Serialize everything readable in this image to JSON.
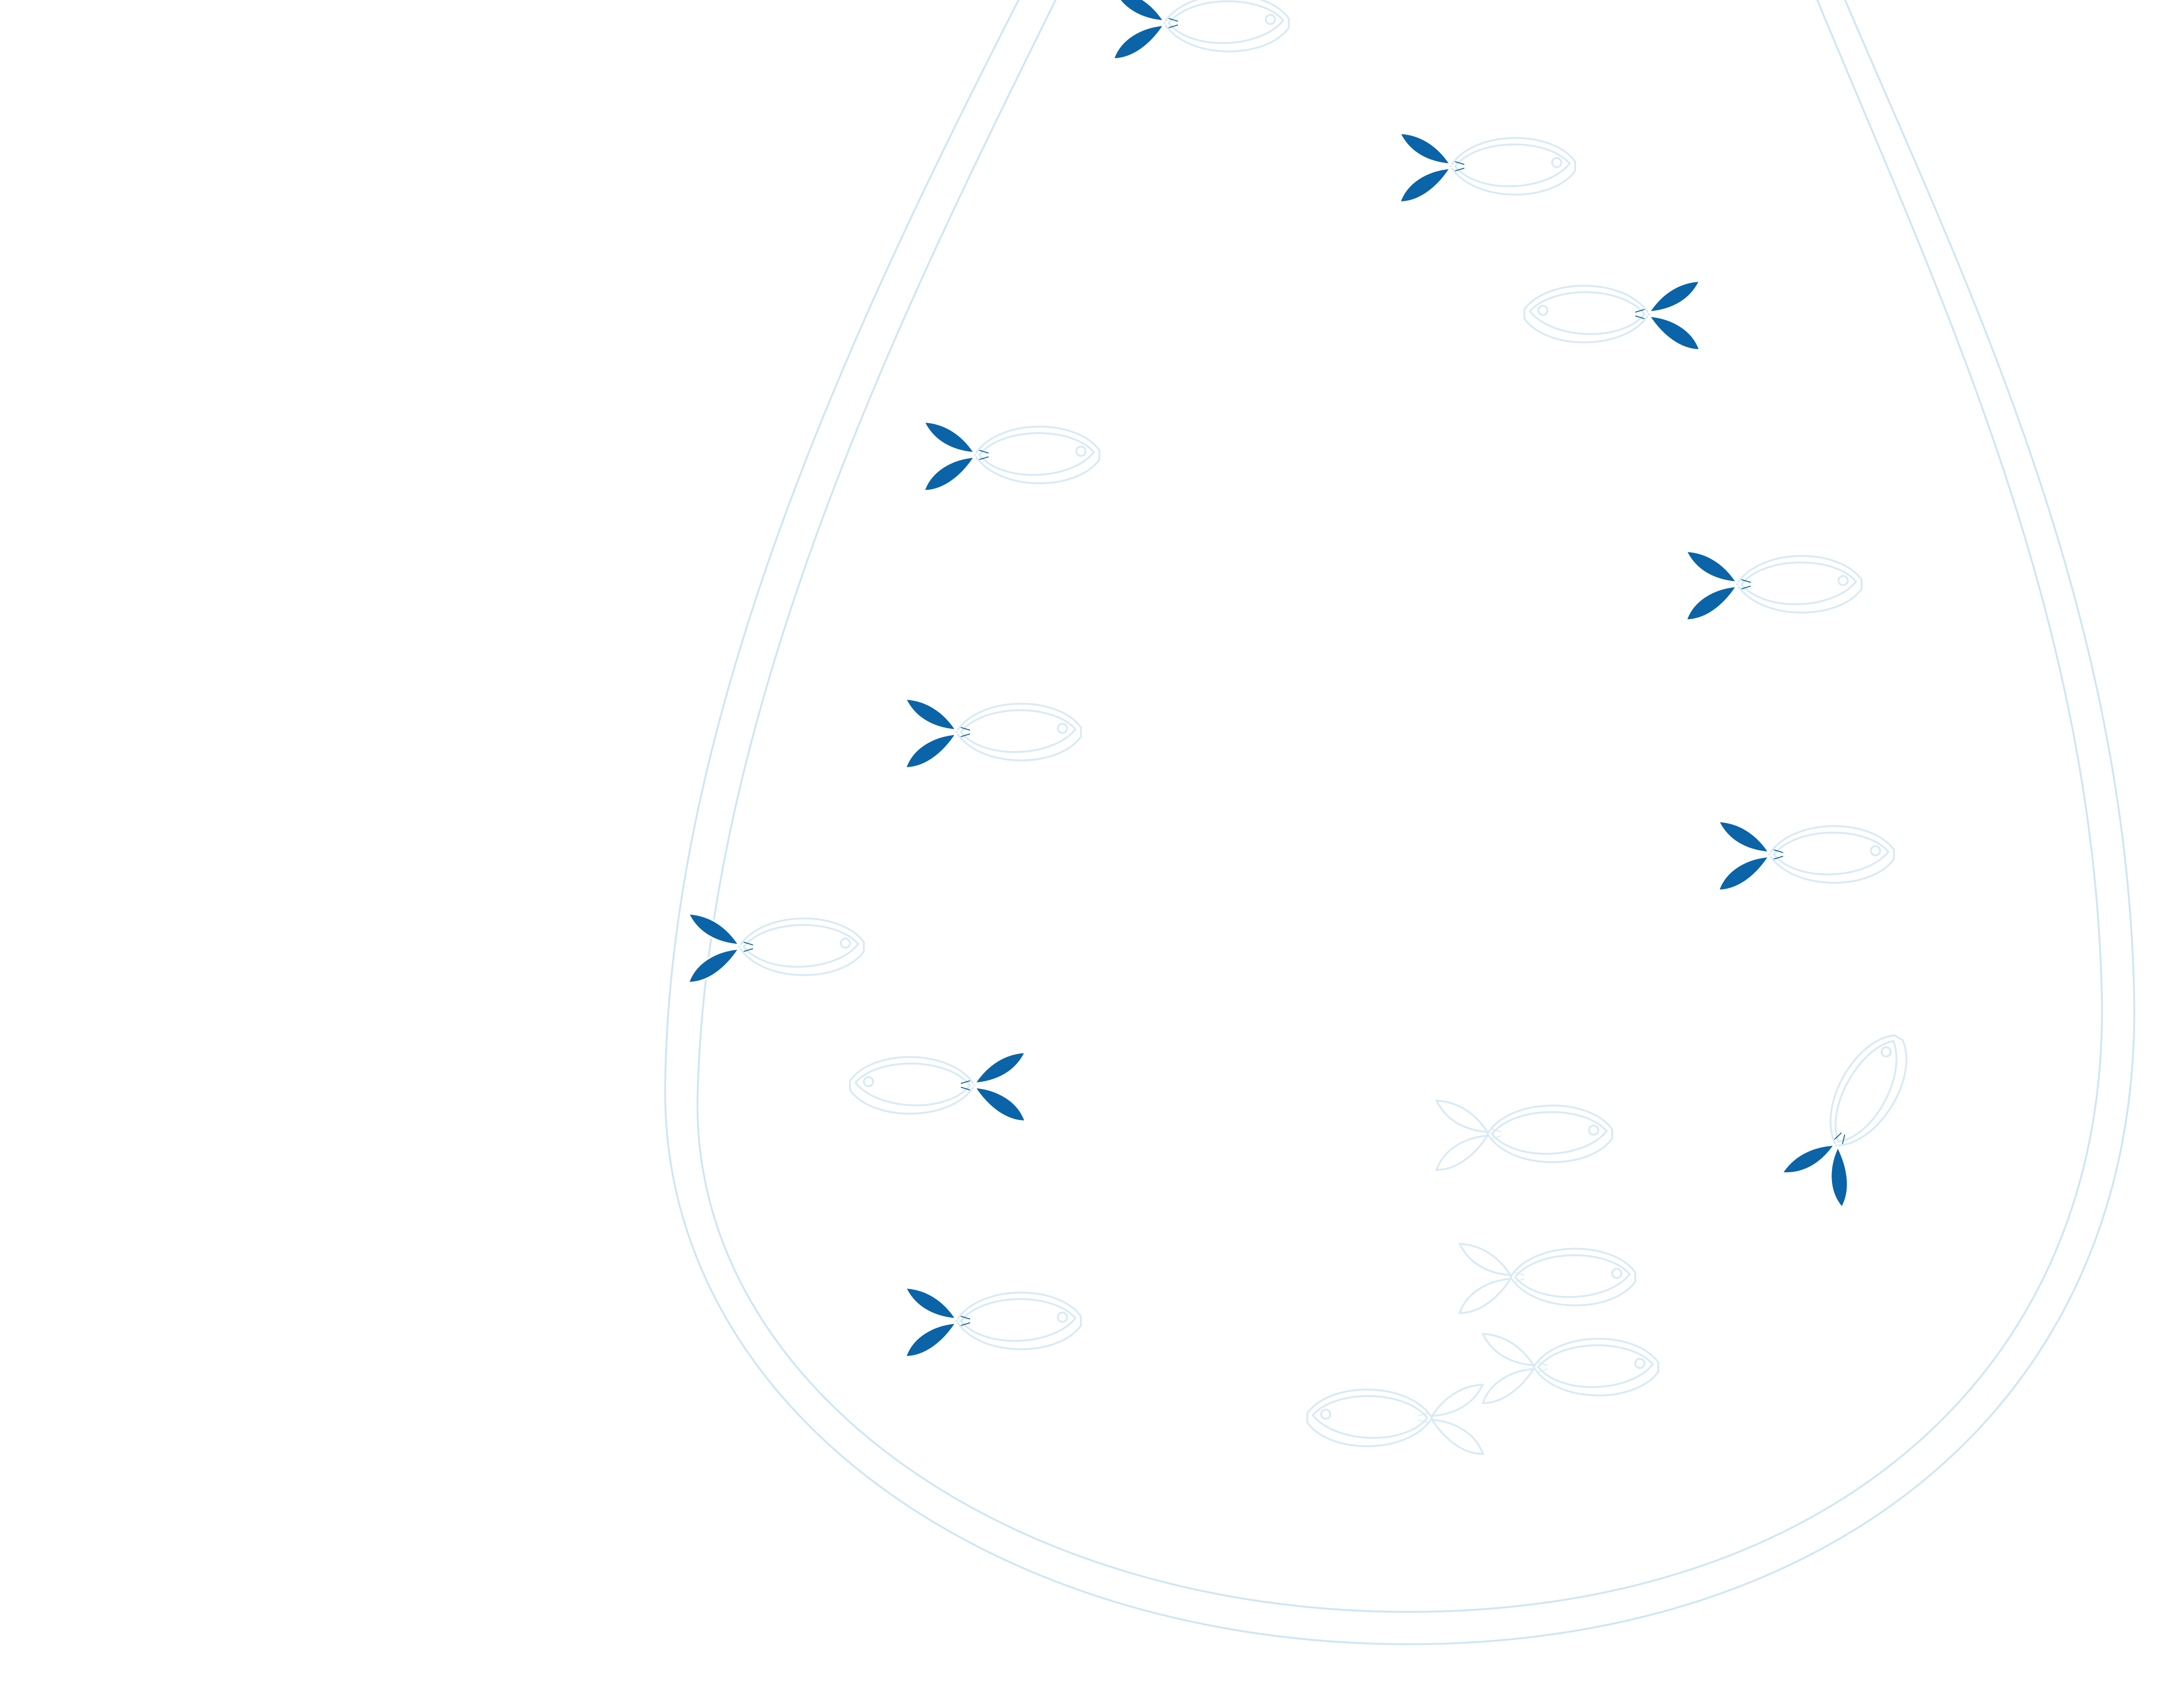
{
  "colors": {
    "tail_fill": "#0b64a8",
    "outline": "#cfe6f3",
    "background": "#ffffff"
  },
  "vessel": {
    "name": "bottle-outline",
    "shape": "inverted teardrop with double outline"
  },
  "fish": [
    {
      "id": "fish-1",
      "tail": "filled",
      "facing": "right"
    },
    {
      "id": "fish-2",
      "tail": "filled",
      "facing": "right"
    },
    {
      "id": "fish-3",
      "tail": "filled",
      "facing": "left"
    },
    {
      "id": "fish-4",
      "tail": "filled",
      "facing": "right"
    },
    {
      "id": "fish-5",
      "tail": "filled",
      "facing": "right"
    },
    {
      "id": "fish-6",
      "tail": "filled",
      "facing": "right"
    },
    {
      "id": "fish-7",
      "tail": "filled",
      "facing": "right"
    },
    {
      "id": "fish-8",
      "tail": "filled",
      "facing": "right"
    },
    {
      "id": "fish-9",
      "tail": "filled",
      "facing": "left"
    },
    {
      "id": "fish-10",
      "tail": "outline",
      "facing": "right"
    },
    {
      "id": "fish-11",
      "tail": "filled",
      "facing": "up-right"
    },
    {
      "id": "fish-12",
      "tail": "filled",
      "facing": "right"
    },
    {
      "id": "fish-13",
      "tail": "outline",
      "facing": "right"
    },
    {
      "id": "fish-14",
      "tail": "outline",
      "facing": "right"
    },
    {
      "id": "fish-15",
      "tail": "outline",
      "facing": "left"
    }
  ]
}
